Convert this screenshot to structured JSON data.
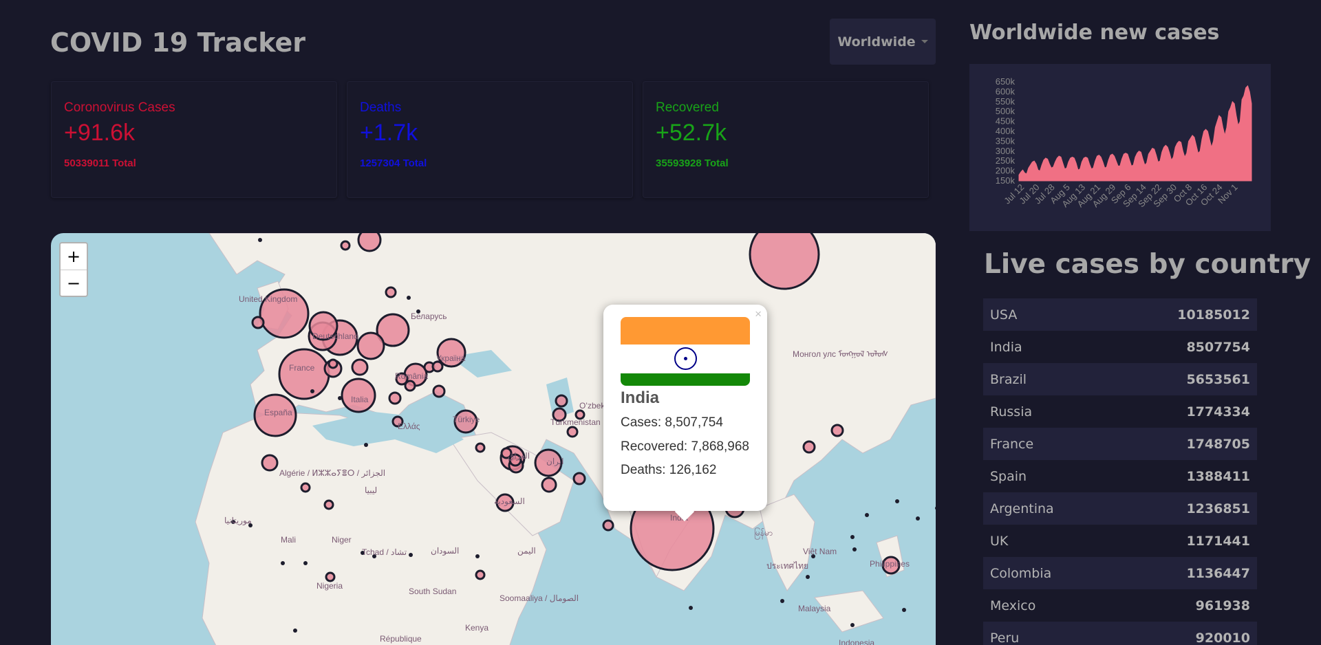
{
  "header": {
    "title": "COVID 19 Tracker"
  },
  "country_select": {
    "value": "Worldwide"
  },
  "stats": [
    {
      "label": "Coronovirus Cases",
      "value": "+91.6k",
      "total": "50339011 Total",
      "color": "#cc1034"
    },
    {
      "label": "Deaths",
      "value": "+1.7k",
      "total": "1257304 Total",
      "color": "#1010dd"
    },
    {
      "label": "Recovered",
      "value": "+52.7k",
      "total": "35593928 Total",
      "color": "#18a318"
    }
  ],
  "map": {
    "zoom_in": "+",
    "zoom_out": "−",
    "labels": [
      "United Kingdom",
      "France",
      "España",
      "Italia",
      "Deutschland",
      "Беларусь",
      "Україна",
      "România",
      "Türkiye",
      "Ελλάς",
      "Algérie / ⵍⵣⵣⴰⵢⴻⵔ / الجزائر",
      "ليبيا",
      "Mali",
      "Niger",
      "Tchad / تشاد",
      "السودان",
      "South Sudan",
      "Nigeria",
      "Soomaaliya / الصومال",
      "Kenya",
      "République",
      "Türkmenistan",
      "Oʻzbek",
      "Монгол улс ᠮᠣᠩᠭᠣᠯ ᠤᠯᠤᠰ",
      "Việt Nam",
      "Philippines",
      "Malaysia",
      "Indonesia",
      "موريتانيا",
      "العراق",
      "ایران",
      "السعودية",
      "اليمن",
      "ประเทศไทย",
      "မြန်မာ",
      "India"
    ],
    "popup": {
      "close": "×",
      "country": "India",
      "cases": "Cases: 8,507,754",
      "recovered": "Recovered: 7,868,968",
      "deaths": "Deaths: 126,162"
    },
    "colors": {
      "water": "#aad3df",
      "land": "#f2efe9",
      "bubble": "#e8889a",
      "bubble_stroke": "#1d1d2d"
    }
  },
  "chart_title": "Worldwide new cases",
  "chart_data": {
    "type": "area",
    "title": "",
    "xlabel": "",
    "ylabel": "",
    "x_ticks": [
      "Jul 12",
      "Jul 20",
      "Jul 28",
      "Aug 5",
      "Aug 13",
      "Aug 21",
      "Aug 29",
      "Sep 6",
      "Sep 14",
      "Sep 22",
      "Sep 30",
      "Oct 8",
      "Oct 16",
      "Oct 24",
      "Nov 1"
    ],
    "y_ticks": [
      "150k",
      "200k",
      "250k",
      "300k",
      "350k",
      "400k",
      "450k",
      "500k",
      "550k",
      "600k",
      "650k"
    ],
    "ylim": [
      150000,
      650000
    ],
    "color": "#f07084",
    "x": [
      "Jul 9",
      "Jul 10",
      "Jul 11",
      "Jul 12",
      "Jul 13",
      "Jul 14",
      "Jul 15",
      "Jul 16",
      "Jul 17",
      "Jul 18",
      "Jul 19",
      "Jul 20",
      "Jul 21",
      "Jul 22",
      "Jul 23",
      "Jul 24",
      "Jul 25",
      "Jul 26",
      "Jul 27",
      "Jul 28",
      "Jul 29",
      "Jul 30",
      "Jul 31",
      "Aug 1",
      "Aug 2",
      "Aug 3",
      "Aug 4",
      "Aug 5",
      "Aug 6",
      "Aug 7",
      "Aug 8",
      "Aug 9",
      "Aug 10",
      "Aug 11",
      "Aug 12",
      "Aug 13",
      "Aug 14",
      "Aug 15",
      "Aug 16",
      "Aug 17",
      "Aug 18",
      "Aug 19",
      "Aug 20",
      "Aug 21",
      "Aug 22",
      "Aug 23",
      "Aug 24",
      "Aug 25",
      "Aug 26",
      "Aug 27",
      "Aug 28",
      "Aug 29",
      "Aug 30",
      "Aug 31",
      "Sep 1",
      "Sep 2",
      "Sep 3",
      "Sep 4",
      "Sep 5",
      "Sep 6",
      "Sep 7",
      "Sep 8",
      "Sep 9",
      "Sep 10",
      "Sep 11",
      "Sep 12",
      "Sep 13",
      "Sep 14",
      "Sep 15",
      "Sep 16",
      "Sep 17",
      "Sep 18",
      "Sep 19",
      "Sep 20",
      "Sep 21",
      "Sep 22",
      "Sep 23",
      "Sep 24",
      "Sep 25",
      "Sep 26",
      "Sep 27",
      "Sep 28",
      "Sep 29",
      "Sep 30",
      "Oct 1",
      "Oct 2",
      "Oct 3",
      "Oct 4",
      "Oct 5",
      "Oct 6",
      "Oct 7",
      "Oct 8",
      "Oct 9",
      "Oct 10",
      "Oct 11",
      "Oct 12",
      "Oct 13",
      "Oct 14",
      "Oct 15",
      "Oct 16",
      "Oct 17",
      "Oct 18",
      "Oct 19",
      "Oct 20",
      "Oct 21",
      "Oct 22",
      "Oct 23",
      "Oct 24",
      "Oct 25",
      "Oct 26",
      "Oct 27",
      "Oct 28",
      "Oct 29",
      "Oct 30",
      "Oct 31",
      "Nov 1",
      "Nov 2",
      "Nov 3",
      "Nov 4",
      "Nov 5",
      "Nov 6",
      "Nov 7",
      "Nov 8"
    ],
    "values": [
      180000,
      195000,
      205000,
      190000,
      185000,
      215000,
      230000,
      245000,
      250000,
      235000,
      205000,
      200000,
      230000,
      255000,
      265000,
      260000,
      235000,
      215000,
      220000,
      245000,
      265000,
      275000,
      270000,
      240000,
      210000,
      215000,
      245000,
      265000,
      270000,
      265000,
      240000,
      205000,
      210000,
      245000,
      265000,
      270000,
      265000,
      235000,
      210000,
      215000,
      250000,
      275000,
      280000,
      270000,
      245000,
      215000,
      220000,
      255000,
      280000,
      285000,
      275000,
      250000,
      225000,
      225000,
      260000,
      285000,
      290000,
      285000,
      255000,
      225000,
      230000,
      270000,
      290000,
      300000,
      295000,
      260000,
      230000,
      240000,
      285000,
      300000,
      315000,
      310000,
      280000,
      245000,
      250000,
      295000,
      320000,
      330000,
      320000,
      290000,
      255000,
      270000,
      320000,
      340000,
      350000,
      345000,
      300000,
      270000,
      290000,
      350000,
      365000,
      380000,
      370000,
      330000,
      290000,
      300000,
      360000,
      400000,
      410000,
      400000,
      360000,
      320000,
      350000,
      420000,
      450000,
      480000,
      470000,
      420000,
      380000,
      420000,
      500000,
      520000,
      550000,
      540000,
      480000,
      430000,
      450000,
      560000,
      580000,
      620000,
      630000,
      600000,
      540000
    ]
  },
  "live_title": "Live cases by country",
  "countries": [
    {
      "name": "USA",
      "cases": "10185012"
    },
    {
      "name": "India",
      "cases": "8507754"
    },
    {
      "name": "Brazil",
      "cases": "5653561"
    },
    {
      "name": "Russia",
      "cases": "1774334"
    },
    {
      "name": "France",
      "cases": "1748705"
    },
    {
      "name": "Spain",
      "cases": "1388411"
    },
    {
      "name": "Argentina",
      "cases": "1236851"
    },
    {
      "name": "UK",
      "cases": "1171441"
    },
    {
      "name": "Colombia",
      "cases": "1136447"
    },
    {
      "name": "Mexico",
      "cases": "961938"
    },
    {
      "name": "Peru",
      "cases": "920010"
    }
  ]
}
